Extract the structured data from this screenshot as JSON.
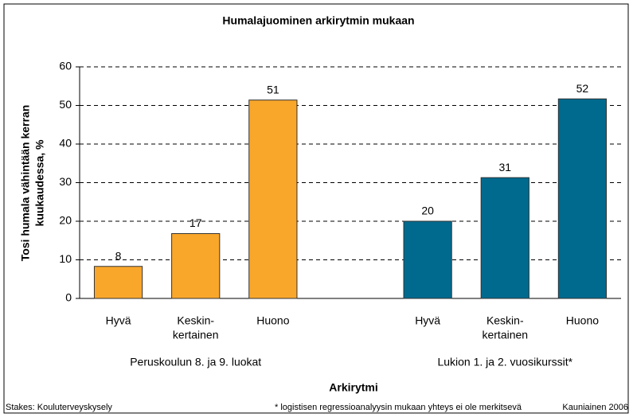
{
  "chart_data": {
    "type": "bar",
    "title": "Humalajuominen arkirytmin mukaan",
    "y_label": [
      "Tosi humala vähintään kerran",
      "kuukaudessa, %"
    ],
    "x_label": "Arkirytmi",
    "ylim": [
      0,
      60
    ],
    "yticks": [
      0,
      10,
      20,
      30,
      40,
      50,
      60
    ],
    "grid": true,
    "groups": [
      {
        "name": "Peruskoulun 8. ja 9. luokat",
        "color": "#f9a72b",
        "categories": [
          [
            "Hyvä"
          ],
          [
            "Keskin-",
            "kertainen"
          ],
          [
            "Huono"
          ]
        ],
        "values": [
          8.3,
          16.8,
          51.4
        ],
        "value_labels": [
          "8",
          "17",
          "51"
        ]
      },
      {
        "name": "Lukion 1. ja 2. vuosikurssit*",
        "color": "#006a8e",
        "categories": [
          [
            "Hyvä"
          ],
          [
            "Keskin-",
            "kertainen"
          ],
          [
            "Huono"
          ]
        ],
        "values": [
          20,
          31.3,
          51.7
        ],
        "value_labels": [
          "20",
          "31",
          "52"
        ]
      }
    ],
    "footer": {
      "source": "Stakes: Kouluterveyskysely",
      "note": "* logistisen regressioanalyysin mukaan yhteys ei ole merkitsevä",
      "credit": "Kauniainen 2006"
    }
  }
}
